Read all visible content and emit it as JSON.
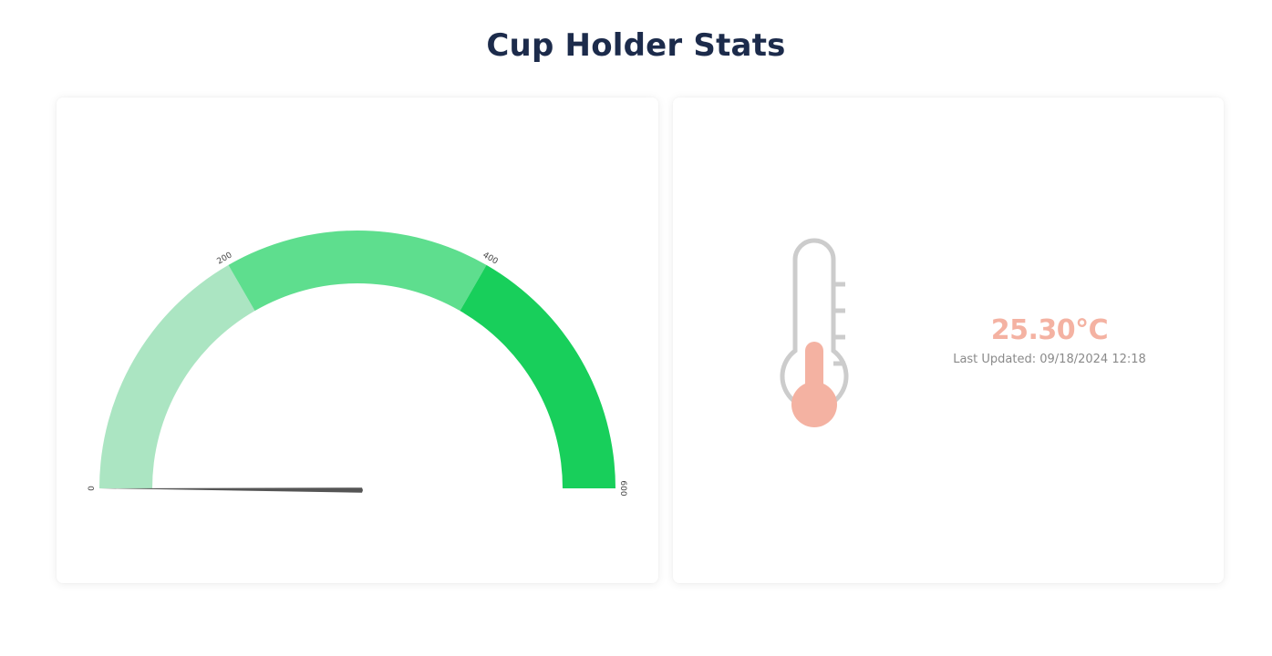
{
  "page": {
    "title": "Cup Holder Stats"
  },
  "gauge": {
    "min": 0,
    "max": 600,
    "value": 0,
    "ticks": [
      "0",
      "200",
      "400",
      "600"
    ],
    "bands": [
      {
        "from": 0,
        "to": 200,
        "color": "#abe5c2"
      },
      {
        "from": 200,
        "to": 400,
        "color": "#5ede8e"
      },
      {
        "from": 400,
        "to": 600,
        "color": "#18cf5b"
      }
    ],
    "needle_color": "#555555"
  },
  "temperature": {
    "value_text": "25.30°C",
    "updated_text": "Last Updated: 09/18/2024 12:18",
    "value_color": "#f4b2a2",
    "mercury_color": "#f4b2a2",
    "outline_color": "#cccccc"
  }
}
